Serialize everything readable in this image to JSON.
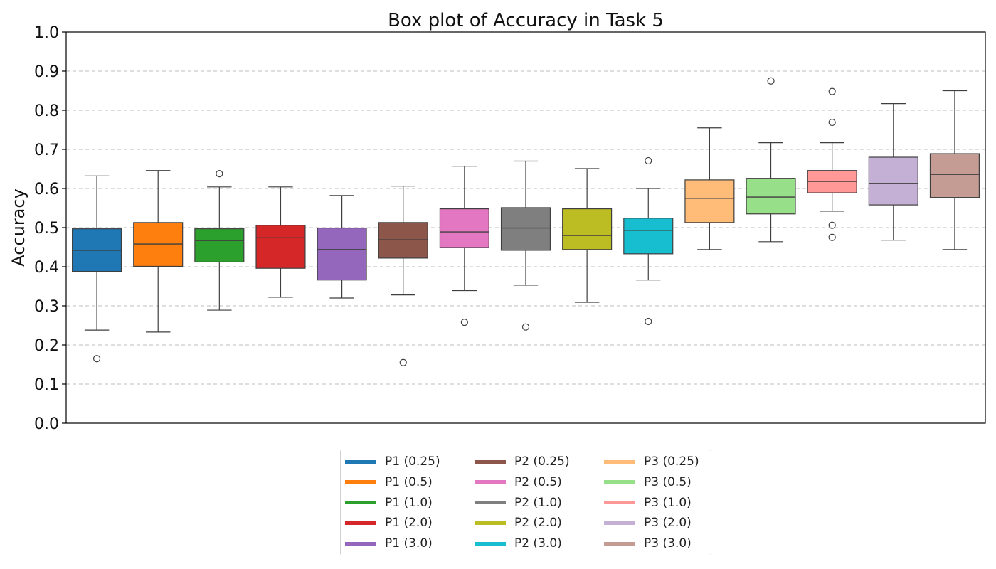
{
  "chart_data": {
    "type": "box",
    "title": "Box plot of Accuracy in Task 5",
    "xlabel": "",
    "ylabel": "Accuracy",
    "ylim": [
      0.0,
      1.0
    ],
    "yticks": [
      "0.0",
      "0.1",
      "0.2",
      "0.3",
      "0.4",
      "0.5",
      "0.6",
      "0.7",
      "0.8",
      "0.9",
      "1.0"
    ],
    "grid": "y-dashed",
    "legend_position": "bottom-center",
    "series": [
      {
        "name": "P1 (0.25)",
        "color": "#1f77b4",
        "whisker_low": 0.238,
        "q1": 0.388,
        "median": 0.442,
        "q3": 0.497,
        "whisker_high": 0.632,
        "outliers": [
          0.165
        ]
      },
      {
        "name": "P1 (0.5)",
        "color": "#ff7f0e",
        "whisker_low": 0.233,
        "q1": 0.401,
        "median": 0.458,
        "q3": 0.513,
        "whisker_high": 0.646,
        "outliers": []
      },
      {
        "name": "P1 (1.0)",
        "color": "#2ca02c",
        "whisker_low": 0.289,
        "q1": 0.412,
        "median": 0.467,
        "q3": 0.497,
        "whisker_high": 0.604,
        "outliers": [
          0.638
        ]
      },
      {
        "name": "P1 (2.0)",
        "color": "#d62728",
        "whisker_low": 0.322,
        "q1": 0.396,
        "median": 0.474,
        "q3": 0.506,
        "whisker_high": 0.604,
        "outliers": []
      },
      {
        "name": "P1 (3.0)",
        "color": "#9467bd",
        "whisker_low": 0.32,
        "q1": 0.366,
        "median": 0.444,
        "q3": 0.499,
        "whisker_high": 0.582,
        "outliers": []
      },
      {
        "name": "P2 (0.25)",
        "color": "#8c564b",
        "whisker_low": 0.328,
        "q1": 0.422,
        "median": 0.469,
        "q3": 0.513,
        "whisker_high": 0.606,
        "outliers": [
          0.155
        ]
      },
      {
        "name": "P2 (0.5)",
        "color": "#e377c2",
        "whisker_low": 0.339,
        "q1": 0.449,
        "median": 0.489,
        "q3": 0.548,
        "whisker_high": 0.657,
        "outliers": [
          0.258
        ]
      },
      {
        "name": "P2 (1.0)",
        "color": "#7f7f7f",
        "whisker_low": 0.353,
        "q1": 0.442,
        "median": 0.499,
        "q3": 0.551,
        "whisker_high": 0.67,
        "outliers": [
          0.246
        ]
      },
      {
        "name": "P2 (2.0)",
        "color": "#bcbd22",
        "whisker_low": 0.309,
        "q1": 0.444,
        "median": 0.48,
        "q3": 0.548,
        "whisker_high": 0.651,
        "outliers": []
      },
      {
        "name": "P2 (3.0)",
        "color": "#17becf",
        "whisker_low": 0.366,
        "q1": 0.433,
        "median": 0.493,
        "q3": 0.524,
        "whisker_high": 0.6,
        "outliers": [
          0.26,
          0.671
        ]
      },
      {
        "name": "P3 (0.25)",
        "color": "#ffbb78",
        "whisker_low": 0.444,
        "q1": 0.513,
        "median": 0.575,
        "q3": 0.622,
        "whisker_high": 0.755,
        "outliers": []
      },
      {
        "name": "P3 (0.5)",
        "color": "#98df8a",
        "whisker_low": 0.464,
        "q1": 0.535,
        "median": 0.578,
        "q3": 0.626,
        "whisker_high": 0.717,
        "outliers": [
          0.875
        ]
      },
      {
        "name": "P3 (1.0)",
        "color": "#ff9896",
        "whisker_low": 0.542,
        "q1": 0.589,
        "median": 0.618,
        "q3": 0.646,
        "whisker_high": 0.717,
        "outliers": [
          0.848,
          0.769,
          0.506,
          0.475
        ]
      },
      {
        "name": "P3 (2.0)",
        "color": "#c5b0d5",
        "whisker_low": 0.468,
        "q1": 0.558,
        "median": 0.613,
        "q3": 0.68,
        "whisker_high": 0.817,
        "outliers": []
      },
      {
        "name": "P3 (3.0)",
        "color": "#c49c94",
        "whisker_low": 0.444,
        "q1": 0.577,
        "median": 0.636,
        "q3": 0.689,
        "whisker_high": 0.85,
        "outliers": []
      }
    ]
  }
}
